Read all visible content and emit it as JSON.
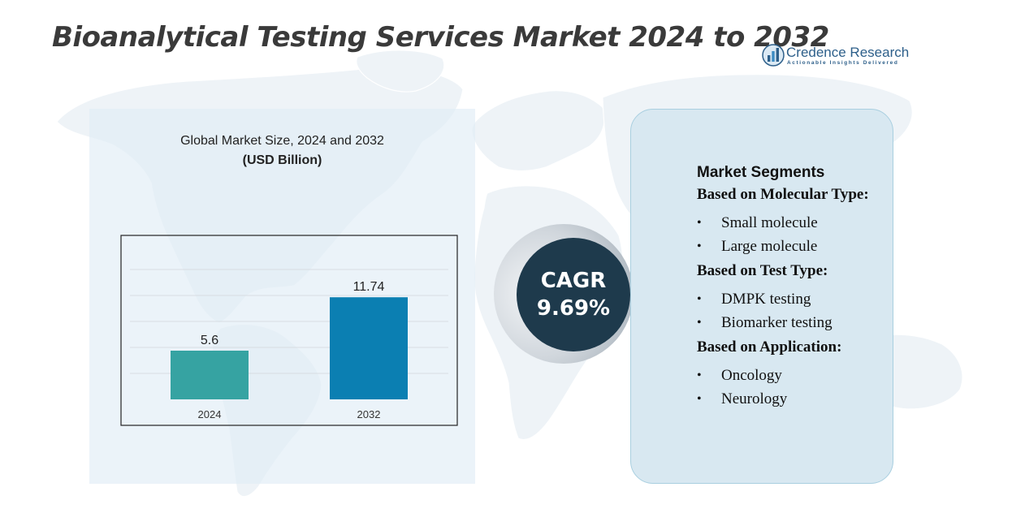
{
  "title": "Bioanalytical Testing Services Market 2024 to 2032",
  "logo": {
    "name": "Credence Research",
    "tagline": "Actionable Insights Delivered",
    "icon": "bar-chart-logo-icon"
  },
  "colors": {
    "bar_2024": "#36a3a2",
    "bar_2032": "#0b7fb2",
    "cagr_circle": "#1e3a4c",
    "segments_panel": "#d8e8f1",
    "chart_panel": "#dfebf5"
  },
  "chart_data": {
    "type": "bar",
    "title": "Global Market Size,  2024 and 2032",
    "subtitle": "(USD Billion)",
    "categories": [
      "2024",
      "2032"
    ],
    "values": [
      5.6,
      11.74
    ],
    "value_labels": [
      "5.6",
      "11.74"
    ],
    "bar_colors": [
      "#36a3a2",
      "#0b7fb2"
    ],
    "xlabel": "",
    "ylabel": "",
    "ylim": [
      0,
      14
    ],
    "grid": true,
    "legend": "none"
  },
  "cagr": {
    "label": "CAGR",
    "value": "9.69%"
  },
  "segments": {
    "title": "Market Segments",
    "groups": [
      {
        "heading": "Based on Molecular Type:",
        "items": [
          "Small molecule",
          "Large molecule"
        ]
      },
      {
        "heading": "Based on Test Type:",
        "items": [
          "DMPK testing",
          "Biomarker testing"
        ]
      },
      {
        "heading": "Based on Application:",
        "items": [
          "Oncology",
          "Neurology"
        ]
      }
    ]
  }
}
